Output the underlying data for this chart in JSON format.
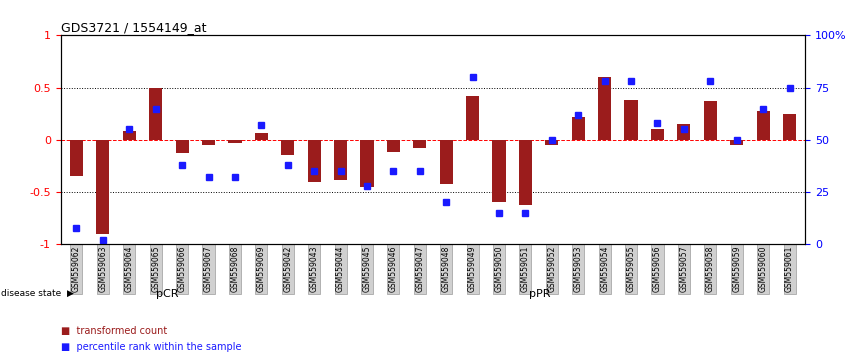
{
  "title": "GDS3721 / 1554149_at",
  "samples": [
    "GSM559062",
    "GSM559063",
    "GSM559064",
    "GSM559065",
    "GSM559066",
    "GSM559067",
    "GSM559068",
    "GSM559069",
    "GSM559042",
    "GSM559043",
    "GSM559044",
    "GSM559045",
    "GSM559046",
    "GSM559047",
    "GSM559048",
    "GSM559049",
    "GSM559050",
    "GSM559051",
    "GSM559052",
    "GSM559053",
    "GSM559054",
    "GSM559055",
    "GSM559056",
    "GSM559057",
    "GSM559058",
    "GSM559059",
    "GSM559060",
    "GSM559061"
  ],
  "transformed_count": [
    -0.35,
    -0.9,
    0.08,
    0.5,
    -0.13,
    -0.05,
    -0.03,
    0.07,
    -0.15,
    -0.4,
    -0.38,
    -0.45,
    -0.12,
    -0.08,
    -0.42,
    0.42,
    -0.6,
    -0.62,
    -0.05,
    0.22,
    0.6,
    0.38,
    0.1,
    0.15,
    0.37,
    -0.05,
    0.28,
    0.25
  ],
  "percentile_rank": [
    8,
    2,
    55,
    65,
    38,
    32,
    32,
    57,
    38,
    35,
    35,
    28,
    35,
    35,
    20,
    80,
    15,
    15,
    50,
    62,
    78,
    78,
    58,
    55,
    78,
    50,
    65,
    75
  ],
  "pCR_count": 8,
  "pPR_count": 20,
  "bar_color": "#9b1c1c",
  "dot_color": "#1a1aff",
  "pCR_color": "#90EE90",
  "pPR_color": "#4CAF72",
  "ylim_left": [
    -1.0,
    1.0
  ],
  "ylim_right": [
    0,
    100
  ],
  "yticks_left": [
    -1.0,
    -0.5,
    0.0,
    0.5,
    1.0
  ],
  "ytick_labels_left": [
    "-1",
    "-0.5",
    "0",
    "0.5",
    "1"
  ],
  "yticks_right": [
    0,
    25,
    50,
    75,
    100
  ],
  "ytick_labels_right": [
    "0",
    "25",
    "50",
    "75",
    "100%"
  ],
  "legend_items": [
    "transformed count",
    "percentile rank within the sample"
  ]
}
